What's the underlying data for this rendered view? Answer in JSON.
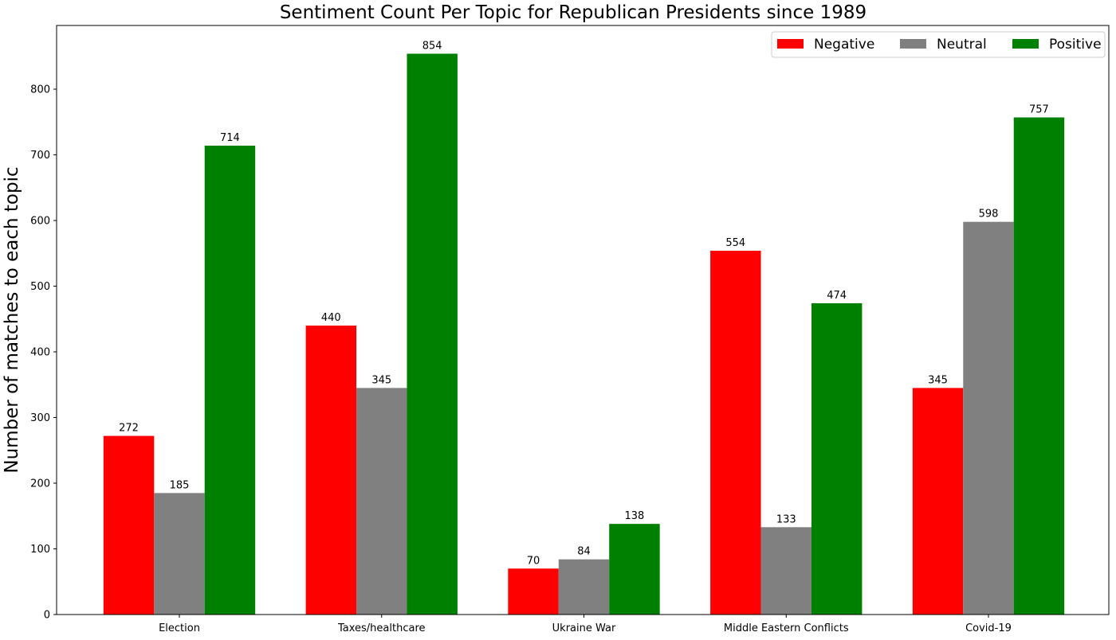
{
  "chart_data": {
    "type": "bar",
    "title": "Sentiment Count Per Topic for Republican Presidents since 1989",
    "xlabel": "",
    "ylabel": "Number of matches to each topic",
    "categories": [
      "Election",
      "Taxes/healthcare",
      "Ukraine War",
      "Middle Eastern Conflicts",
      "Covid-19"
    ],
    "series": [
      {
        "name": "Negative",
        "color": "#ff0000",
        "values": [
          272,
          440,
          70,
          554,
          345
        ]
      },
      {
        "name": "Neutral",
        "color": "#808080",
        "values": [
          185,
          345,
          84,
          133,
          598
        ]
      },
      {
        "name": "Positive",
        "color": "#008000",
        "values": [
          714,
          854,
          138,
          474,
          757
        ]
      }
    ],
    "ylim": [
      0,
      897
    ],
    "yticks": [
      0,
      100,
      200,
      300,
      400,
      500,
      600,
      700,
      800
    ],
    "grid": false,
    "legend": "top-right",
    "data_labels": true
  }
}
